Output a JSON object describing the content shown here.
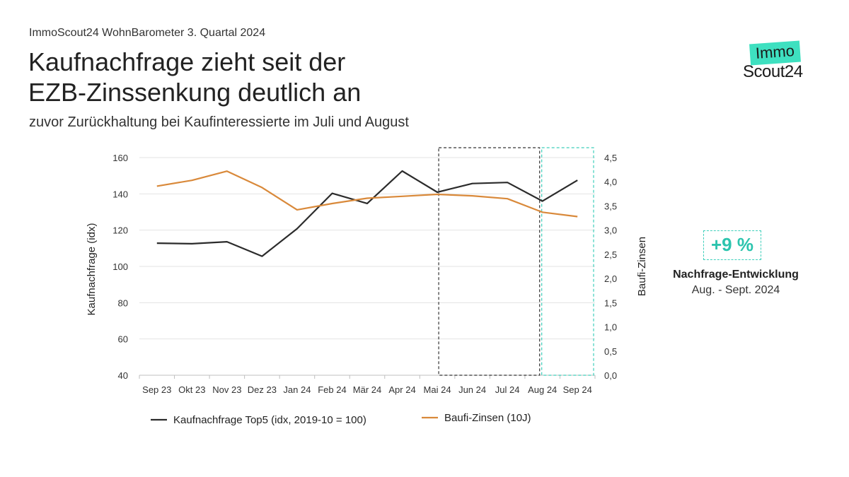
{
  "header": {
    "kicker": "ImmoScout24 WohnBarometer 3. Quartal 2024",
    "title_line1": "Kaufnachfrage zieht seit der",
    "title_line2": "EZB-Zinssenkung deutlich an",
    "subtitle": "zuvor Zurückhaltung bei Kaufinteressierte im Juli und August"
  },
  "logo": {
    "top": "Immo",
    "bottom": "Scout24",
    "accent_color": "#3ee0c0"
  },
  "kpi": {
    "value": "+9 %",
    "label": "Nachfrage-Entwicklung",
    "period": "Aug. - Sept. 2024",
    "color": "#2cc4ae"
  },
  "chart_data": {
    "type": "line",
    "categories": [
      "Sep 23",
      "Okt 23",
      "Nov 23",
      "Dez 23",
      "Jan 24",
      "Feb 24",
      "Mär 24",
      "Apr 24",
      "Mai 24",
      "Jun 24",
      "Jul 24",
      "Aug 24",
      "Sep 24"
    ],
    "ylabel": "Kaufnachfrage (idx)",
    "y2label": "Baufi-Zinsen",
    "ylim": [
      40,
      160
    ],
    "yticks": [
      "40",
      "60",
      "80",
      "100",
      "120",
      "140",
      "160"
    ],
    "y2lim": [
      0,
      4.5
    ],
    "y2ticks": [
      "0,0",
      "0,5",
      "1,0",
      "1,5",
      "2,0",
      "2,5",
      "3,0",
      "3,5",
      "4,0",
      "4,5"
    ],
    "grid": true,
    "legend": "bottom",
    "series": [
      {
        "name": "Kaufnachfrage Top5 (idx, 2019-10 = 100)",
        "axis": "left",
        "color": "#2b2b2b",
        "values": [
          112.8,
          112.5,
          113.6,
          105.6,
          120.8,
          140.3,
          134.7,
          152.6,
          140.9,
          145.7,
          146.3,
          136.0,
          147.5
        ]
      },
      {
        "name": "Baufi-Zinsen (10J)",
        "axis": "right",
        "color": "#d9893a",
        "values": [
          3.91,
          4.03,
          4.22,
          3.88,
          3.42,
          3.55,
          3.66,
          3.7,
          3.74,
          3.71,
          3.65,
          3.37,
          3.28
        ]
      }
    ],
    "highlights": [
      {
        "from": "Mai 24",
        "to": "Aug 24",
        "color": "#333333"
      },
      {
        "from": "Aug 24",
        "to": "Sep 24",
        "color": "#3ecfbb"
      }
    ]
  }
}
